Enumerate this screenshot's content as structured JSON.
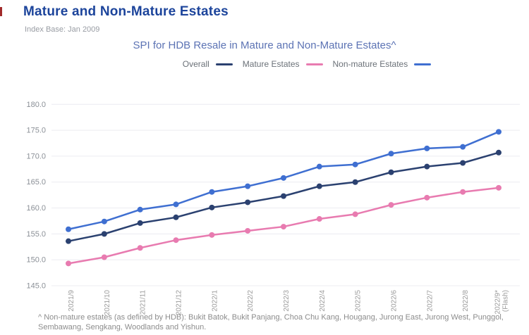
{
  "header": {
    "title": "Mature and Non-Mature Estates",
    "subtitle": "Index Base: Jan 2009"
  },
  "footnote": {
    "text": "^ Non-mature estates (as defined by HDB): Bukit Batok, Bukit Panjang, Choa Chu Kang, Hougang, Jurong East, Jurong West, Punggol, Sembawang, Sengkang, Woodlands and Yishun."
  },
  "colors": {
    "page_title": "#1c449b",
    "chart_title": "#5c73b4",
    "accent_tick": "#a12a2a",
    "gridline": "#ececf1",
    "overall_line": "#2b4170",
    "mature_line": "#e87bb0",
    "non_mature_line": "#3f6fd1"
  },
  "chart_data": {
    "type": "line",
    "title": "SPI for HDB Resale in Mature and Non-Mature Estates^",
    "categories": [
      "2021/9",
      "2021/10",
      "2021/11",
      "2021/12",
      "2022/1",
      "2022/2",
      "2022/3",
      "2022/4",
      "2022/5",
      "2022/6",
      "2022/7",
      "2022/8",
      "2022/9*\n(Flash)"
    ],
    "series": [
      {
        "name": "Overall",
        "color": "#2b4170",
        "values": [
          153.6,
          155.0,
          157.1,
          158.2,
          160.1,
          161.1,
          162.3,
          164.2,
          165.0,
          166.9,
          168.0,
          168.7,
          170.7
        ]
      },
      {
        "name": "Mature Estates",
        "color": "#e87bb0",
        "values": [
          149.3,
          150.5,
          152.3,
          153.8,
          154.8,
          155.6,
          156.4,
          157.9,
          158.8,
          160.6,
          162.0,
          163.1,
          163.9
        ]
      },
      {
        "name": "Non-mature Estates",
        "color": "#3f6fd1",
        "values": [
          155.9,
          157.4,
          159.7,
          160.7,
          163.1,
          164.2,
          165.8,
          168.0,
          168.4,
          170.5,
          171.5,
          171.8,
          174.7
        ]
      }
    ],
    "xlabel": "",
    "ylabel": "",
    "ylim": [
      145.0,
      180.0
    ],
    "ytick_step": 5,
    "ytick_labels": [
      "145.0",
      "150.0",
      "155.0",
      "160.0",
      "165.0",
      "170.0",
      "175.0",
      "180.0"
    ],
    "grid": "horizontal",
    "legend_position": "top",
    "point_markers": true
  }
}
